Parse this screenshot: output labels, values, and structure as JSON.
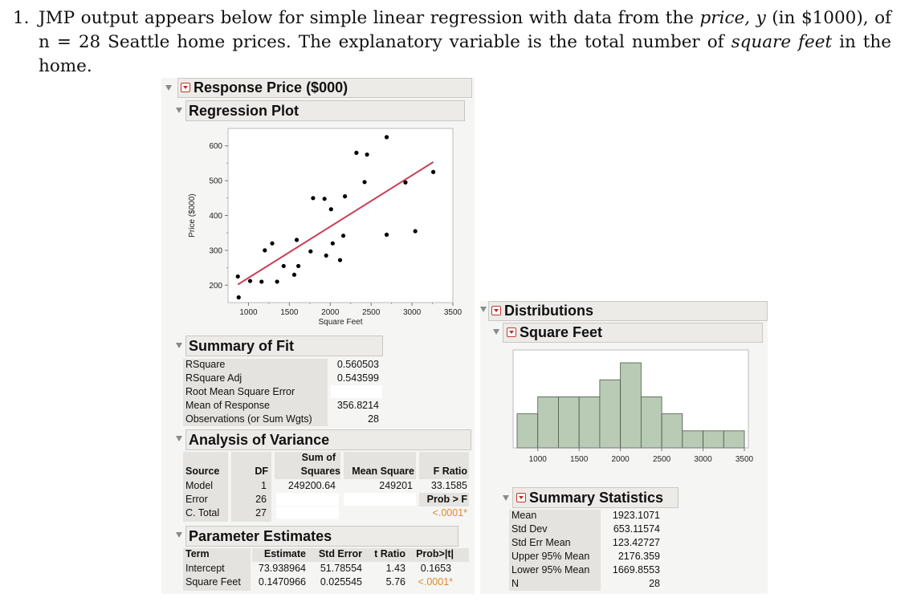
{
  "problem": {
    "number": "1.",
    "line1_a": "JMP output appears below for simple linear regression with data from the ",
    "line1_price": "price, y",
    "line1_b": " (in $1000), of",
    "line2_a": "n = 28 Seattle home prices.  The explanatory variable is the total number of ",
    "line2_sqft": "square feet",
    "line2_b": " in the",
    "line3": "home."
  },
  "left": {
    "response_title": "Response Price ($000)",
    "regression_plot_title": "Regression Plot",
    "summary_fit_title": "Summary of Fit",
    "anova_title": "Analysis of Variance",
    "param_title": "Parameter Estimates"
  },
  "summary_of_fit": {
    "rows": [
      {
        "label": "RSquare",
        "value": "0.560503"
      },
      {
        "label": "RSquare Adj",
        "value": "0.543599"
      },
      {
        "label": "Root Mean Square Error",
        "value": ""
      },
      {
        "label": "Mean of Response",
        "value": "356.8214"
      },
      {
        "label": "Observations (or Sum Wgts)",
        "value": "28"
      }
    ]
  },
  "anova": {
    "headers": [
      "Source",
      "DF",
      "Sum of",
      "Squares",
      "Mean Square",
      "F Ratio"
    ],
    "rows": [
      {
        "source": "Model",
        "df": "1",
        "ss": "249200.64",
        "ms": "249201",
        "f": "33.1585"
      },
      {
        "source": "Error",
        "df": "26",
        "ss": "",
        "ms": "",
        "f": "Prob > F"
      },
      {
        "source": "C. Total",
        "df": "27",
        "ss": "",
        "ms": "",
        "f": "<.0001*"
      }
    ]
  },
  "parameter_estimates": {
    "headers": [
      "Term",
      "Estimate",
      "Std Error",
      "t Ratio",
      "Prob>|t|"
    ],
    "rows": [
      {
        "term": "Intercept",
        "estimate": "73.938964",
        "se": "51.78554",
        "t": "1.43",
        "p": "0.1653"
      },
      {
        "term": "Square Feet",
        "estimate": "0.1470966",
        "se": "0.025545",
        "t": "5.76",
        "p": "<.0001*"
      }
    ]
  },
  "right": {
    "distributions_title": "Distributions",
    "variable_title": "Square Feet",
    "summary_stats_title": "Summary Statistics"
  },
  "summary_statistics": {
    "rows": [
      {
        "label": "Mean",
        "value": "1923.1071"
      },
      {
        "label": "Std Dev",
        "value": "653.11574"
      },
      {
        "label": "Std Err Mean",
        "value": "123.42727"
      },
      {
        "label": "Upper 95% Mean",
        "value": "2176.359"
      },
      {
        "label": "Lower 95% Mean",
        "value": "1669.8553"
      },
      {
        "label": "N",
        "value": "28"
      }
    ]
  },
  "colors": {
    "fit_line": "#c94057",
    "hist_fill": "#b9cbb5",
    "significant": "#e08a2c"
  },
  "chart_data": [
    {
      "type": "scatter",
      "title": "Regression Plot",
      "xlabel": "Square Feet",
      "ylabel": "Price ($000)",
      "xlim": [
        750,
        3500
      ],
      "ylim": [
        150,
        650
      ],
      "x_ticks": [
        "1000",
        "1500",
        "2000",
        "2500",
        "3000",
        "3500"
      ],
      "y_ticks": [
        "200",
        "300",
        "400",
        "500",
        "600"
      ],
      "points": [
        [
          870,
          225
        ],
        [
          880,
          165
        ],
        [
          1020,
          212
        ],
        [
          1160,
          210
        ],
        [
          1200,
          300
        ],
        [
          1290,
          320
        ],
        [
          1350,
          210
        ],
        [
          1430,
          255
        ],
        [
          1560,
          230
        ],
        [
          1590,
          330
        ],
        [
          1610,
          255
        ],
        [
          1760,
          297
        ],
        [
          1790,
          450
        ],
        [
          1930,
          448
        ],
        [
          1950,
          285
        ],
        [
          2010,
          418
        ],
        [
          2030,
          320
        ],
        [
          2120,
          272
        ],
        [
          2160,
          342
        ],
        [
          2180,
          455
        ],
        [
          2320,
          580
        ],
        [
          2420,
          496
        ],
        [
          2450,
          575
        ],
        [
          2690,
          625
        ],
        [
          2690,
          345
        ],
        [
          2920,
          495
        ],
        [
          3040,
          355
        ],
        [
          3260,
          525
        ]
      ],
      "fit_line": {
        "intercept": 73.938964,
        "slope": 0.1470966,
        "x_range": [
          870,
          3260
        ]
      }
    },
    {
      "type": "bar",
      "title": "Square Feet",
      "xlabel": "",
      "bin_edges": [
        750,
        1000,
        1250,
        1500,
        1750,
        2000,
        2250,
        2500,
        2750,
        3000,
        3250,
        3500
      ],
      "values": [
        2,
        3,
        3,
        3,
        4,
        5,
        3,
        2,
        1,
        1,
        1
      ],
      "x_ticks": [
        "1000",
        "1500",
        "2000",
        "2500",
        "3000",
        "3500"
      ]
    }
  ]
}
